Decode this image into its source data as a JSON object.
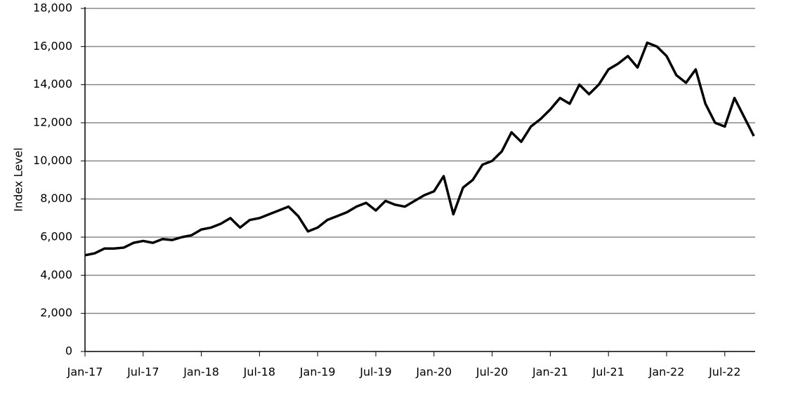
{
  "chart_data": {
    "type": "line",
    "y_label": "Index Level",
    "x": [
      "2017-01",
      "2017-02",
      "2017-03",
      "2017-04",
      "2017-05",
      "2017-06",
      "2017-07",
      "2017-08",
      "2017-09",
      "2017-10",
      "2017-11",
      "2017-12",
      "2018-01",
      "2018-02",
      "2018-03",
      "2018-04",
      "2018-05",
      "2018-06",
      "2018-07",
      "2018-08",
      "2018-09",
      "2018-10",
      "2018-11",
      "2018-12",
      "2019-01",
      "2019-02",
      "2019-03",
      "2019-04",
      "2019-05",
      "2019-06",
      "2019-07",
      "2019-08",
      "2019-09",
      "2019-10",
      "2019-11",
      "2019-12",
      "2020-01",
      "2020-02",
      "2020-03",
      "2020-04",
      "2020-05",
      "2020-06",
      "2020-07",
      "2020-08",
      "2020-09",
      "2020-10",
      "2020-11",
      "2020-12",
      "2021-01",
      "2021-02",
      "2021-03",
      "2021-04",
      "2021-05",
      "2021-06",
      "2021-07",
      "2021-08",
      "2021-09",
      "2021-10",
      "2021-11",
      "2021-12",
      "2022-01",
      "2022-02",
      "2022-03",
      "2022-04",
      "2022-05",
      "2022-06",
      "2022-07",
      "2022-08",
      "2022-09",
      "2022-10"
    ],
    "series": [
      {
        "name": "Index Level",
        "color": "#000000",
        "values": [
          5050,
          5150,
          5400,
          5400,
          5450,
          5700,
          5800,
          5700,
          5900,
          5850,
          6000,
          6100,
          6400,
          6500,
          6700,
          7000,
          6500,
          6900,
          7000,
          7200,
          7400,
          7600,
          7100,
          6300,
          6500,
          6900,
          7100,
          7300,
          7600,
          7800,
          7400,
          7900,
          7700,
          7600,
          7900,
          8200,
          8400,
          9200,
          7200,
          8600,
          9000,
          9800,
          10000,
          10500,
          11500,
          11000,
          11800,
          12200,
          12700,
          13300,
          13000,
          14000,
          13500,
          14000,
          14800,
          15100,
          15500,
          14900,
          16200,
          16000,
          15500,
          14500,
          14100,
          14800,
          13000,
          12000,
          11800,
          13300,
          12300,
          11300
        ]
      }
    ],
    "ylim": [
      0,
      18000
    ],
    "yticks": [
      0,
      {
        "value": 2000,
        "label": "2,000"
      },
      {
        "value": 4000,
        "label": "4,000"
      },
      {
        "value": 6000,
        "label": "6,000"
      },
      {
        "value": 8000,
        "label": "8,000"
      },
      {
        "value": 10000,
        "label": "10,000"
      },
      {
        "value": 12000,
        "label": "12,000"
      },
      {
        "value": 14000,
        "label": "14,000"
      },
      {
        "value": 16000,
        "label": "16,000"
      },
      {
        "value": 18000,
        "label": "18,000"
      }
    ],
    "xticks": [
      {
        "value": "2017-01",
        "label": "Jan-17"
      },
      {
        "value": "2017-07",
        "label": "Jul-17"
      },
      {
        "value": "2018-01",
        "label": "Jan-18"
      },
      {
        "value": "2018-07",
        "label": "Jul-18"
      },
      {
        "value": "2019-01",
        "label": "Jan-19"
      },
      {
        "value": "2019-07",
        "label": "Jul-19"
      },
      {
        "value": "2020-01",
        "label": "Jan-20"
      },
      {
        "value": "2020-07",
        "label": "Jul-20"
      },
      {
        "value": "2021-01",
        "label": "Jan-21"
      },
      {
        "value": "2021-07",
        "label": "Jul-21"
      },
      {
        "value": "2022-01",
        "label": "Jan-22"
      },
      {
        "value": "2022-07",
        "label": "Jul-22"
      }
    ],
    "grid": true
  }
}
